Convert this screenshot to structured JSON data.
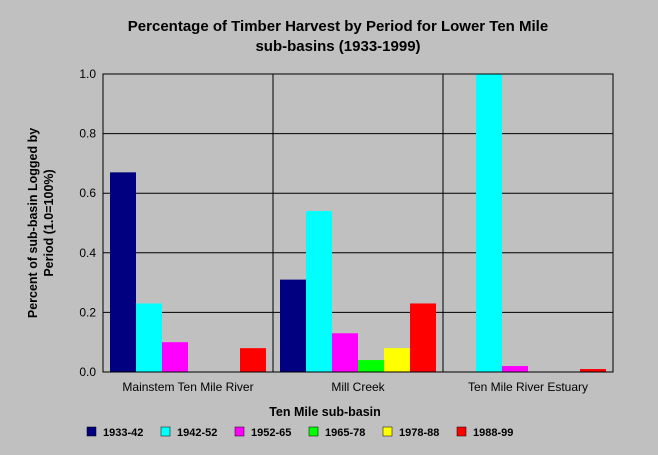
{
  "chart_data": {
    "type": "bar",
    "title_lines": [
      "Percentage of Timber Harvest by Period for Lower Ten Mile",
      "sub-basins (1933-1999)"
    ],
    "xlabel": "Ten Mile sub-basin",
    "ylabel_lines": [
      "Percent of sub-basin Logged by",
      "Period (1.0=100%)"
    ],
    "ylim": [
      0,
      1.0
    ],
    "yticks": [
      "0.0",
      "0.2",
      "0.4",
      "0.6",
      "0.8",
      "1.0"
    ],
    "ytick_values": [
      0.0,
      0.2,
      0.4,
      0.6,
      0.8,
      1.0
    ],
    "grid": true,
    "legend_position": "bottom",
    "categories": [
      "Mainstem Ten Mile River",
      "Mill Creek",
      "Ten Mile River Estuary"
    ],
    "series": [
      {
        "name": "1933-42",
        "color": "#000080",
        "values": [
          0.67,
          0.31,
          0.0
        ]
      },
      {
        "name": "1942-52",
        "color": "#00ffff",
        "values": [
          0.23,
          0.54,
          1.0
        ]
      },
      {
        "name": "1952-65",
        "color": "#ff00ff",
        "values": [
          0.1,
          0.13,
          0.02
        ]
      },
      {
        "name": "1965-78",
        "color": "#00ff00",
        "values": [
          0.0,
          0.04,
          0.0
        ]
      },
      {
        "name": "1978-88",
        "color": "#ffff00",
        "values": [
          0.0,
          0.08,
          0.0
        ]
      },
      {
        "name": "1988-99",
        "color": "#ff0000",
        "values": [
          0.08,
          0.23,
          0.01
        ]
      }
    ]
  }
}
